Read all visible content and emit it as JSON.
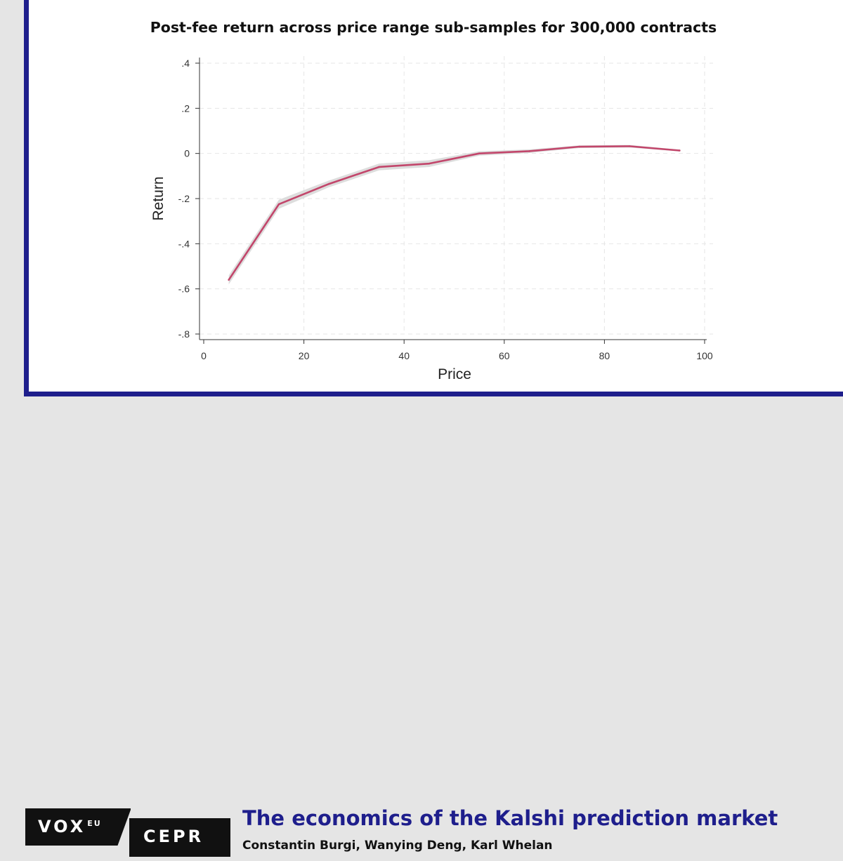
{
  "chart_data": {
    "type": "line",
    "title": "Post-fee return across price range sub-samples for 300,000 contracts",
    "xlabel": "Price",
    "ylabel": "Return",
    "xlim": [
      0,
      100
    ],
    "ylim": [
      -0.8,
      0.4
    ],
    "x_ticks": [
      0,
      20,
      40,
      60,
      80,
      100
    ],
    "x_tick_labels": [
      "0",
      "20",
      "40",
      "60",
      "80",
      "100"
    ],
    "y_ticks": [
      0.4,
      0.2,
      0,
      -0.2,
      -0.4,
      -0.6,
      -0.8
    ],
    "y_tick_labels": [
      ".4",
      ".2",
      "0",
      "-.2",
      "-.4",
      "-.6",
      "-.8"
    ],
    "grid": true,
    "series": [
      {
        "x": [
          5,
          15,
          25,
          35,
          45,
          55,
          65,
          75,
          85,
          95
        ],
        "values": [
          -0.56,
          -0.225,
          -0.135,
          -0.06,
          -0.045,
          0.0,
          0.01,
          0.03,
          0.032,
          0.013
        ],
        "ci_lower": [
          -0.58,
          -0.245,
          -0.15,
          -0.075,
          -0.06,
          -0.01,
          0.002,
          0.024,
          0.026,
          0.009
        ],
        "ci_upper": [
          -0.54,
          -0.205,
          -0.12,
          -0.045,
          -0.03,
          0.01,
          0.018,
          0.036,
          0.038,
          0.017
        ],
        "color": "#c2466b",
        "band_color": "#d9d9d9"
      }
    ]
  },
  "footer": {
    "logo_vox": "VOX",
    "logo_eu": "EU",
    "logo_cepr": "CEPR",
    "title": "The economics of the Kalshi prediction market",
    "authors": "Constantin Burgi, Wanying Deng, Karl Whelan"
  },
  "colors": {
    "accent": "#1e1e8c",
    "background": "#e5e5e5"
  }
}
